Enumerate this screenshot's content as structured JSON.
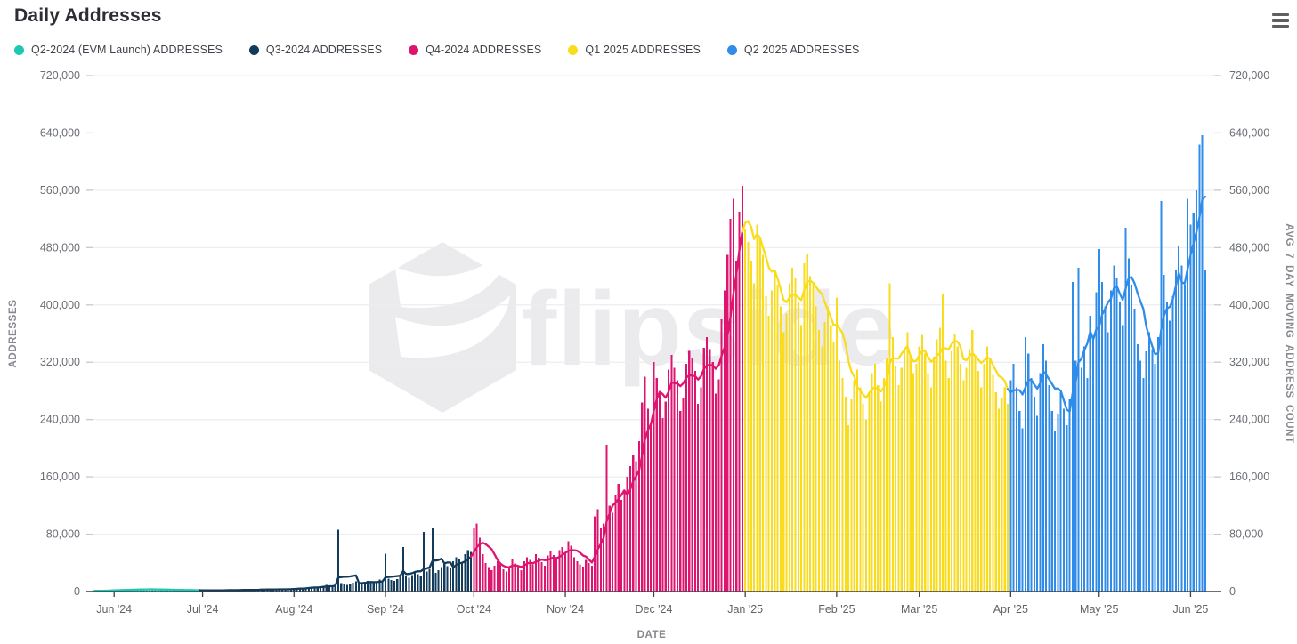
{
  "header": {
    "title": "Daily Addresses"
  },
  "legend": [
    {
      "label": "Q2-2024 (EVM Launch) ADDRESSES",
      "color": "#1BC8B1"
    },
    {
      "label": "Q3-2024 ADDRESSES",
      "color": "#123A5B"
    },
    {
      "label": "Q4-2024 ADDRESSES",
      "color": "#DD1470"
    },
    {
      "label": "Q1 2025 ADDRESSES",
      "color": "#F9DC1C"
    },
    {
      "label": "Q2 2025 ADDRESSES",
      "color": "#2F8CE8"
    }
  ],
  "watermark": {
    "text": "flipside"
  },
  "axes": {
    "left_title": "ADDRESSES",
    "right_title": "AVG_7_DAY_MOVING_ADDRESS_COUNT",
    "x_title": "DATE",
    "y_tick_labels": [
      "0",
      "80,000",
      "160,000",
      "240,000",
      "320,000",
      "400,000",
      "480,000",
      "560,000",
      "640,000",
      "720,000"
    ],
    "x_tick_labels": [
      "Jun '24",
      "Jul '24",
      "Aug '24",
      "Sep '24",
      "Oct '24",
      "Nov '24",
      "Dec '24",
      "Jan '25",
      "Feb '25",
      "Mar '25",
      "Apr '25",
      "May '25",
      "Jun '25"
    ]
  },
  "chart_data": {
    "type": "bar",
    "overlay_line": "7-day trailing moving average of the daily bars, drawn in the color of each quarter",
    "title": "Daily Addresses",
    "xlabel": "DATE",
    "ylabel_left": "ADDRESSES",
    "ylabel_right": "AVG_7_DAY_MOVING_ADDRESS_COUNT",
    "ylim": [
      0,
      720000
    ],
    "y_tick_step": 80000,
    "grid": "horizontal",
    "legend_position": "top-left",
    "start_date": "2024-05-25",
    "end_date": "2025-06-06",
    "month_tick_day_offsets": [
      7,
      37,
      68,
      99,
      129,
      160,
      190,
      221,
      252,
      280,
      311,
      341,
      372
    ],
    "series": [
      {
        "name": "Q2-2024 (EVM Launch) ADDRESSES",
        "color": "#1BC8B1",
        "start_day_offset": 0,
        "values": [
          800,
          1100,
          1400,
          1200,
          1500,
          1800,
          2200,
          2600,
          2400,
          2100,
          1900,
          2300,
          2800,
          3200,
          3600,
          3400,
          3000,
          2700,
          2500,
          2900,
          3300,
          3100,
          2800,
          2400,
          2200,
          2000,
          2300,
          2600,
          2400,
          2100,
          1900,
          1700,
          1800,
          2000,
          1900,
          1700,
          1600
        ]
      },
      {
        "name": "Q3-2024 ADDRESSES",
        "color": "#123A5B",
        "start_day_offset": 37,
        "values": [
          1600,
          1400,
          1800,
          2100,
          1900,
          1700,
          1500,
          1800,
          2200,
          2500,
          2300,
          2000,
          1800,
          2100,
          2400,
          2700,
          2500,
          2200,
          2600,
          3000,
          3400,
          3100,
          2800,
          2500,
          2900,
          3300,
          3700,
          3400,
          3000,
          3500,
          4000,
          4500,
          5200,
          4800,
          4200,
          5500,
          6300,
          7100,
          6500,
          5800,
          6800,
          8000,
          9200,
          8400,
          7600,
          10500,
          86000,
          12000,
          10800,
          9600,
          11400,
          12600,
          14500,
          12800,
          11200,
          13000,
          15200,
          13600,
          12100,
          14000,
          16500,
          15000,
          53000,
          18000,
          16200,
          14800,
          17500,
          20400,
          62000,
          22000,
          19500,
          23000,
          26500,
          24000,
          21500,
          83000,
          28000,
          31500,
          88000,
          26000,
          29500,
          34000,
          38500,
          35500,
          32000,
          42000,
          48000,
          44500,
          40000,
          52000,
          58000,
          55000
        ]
      },
      {
        "name": "Q4-2024 ADDRESSES",
        "color": "#DD1470",
        "start_day_offset": 129,
        "values": [
          88000,
          95000,
          75000,
          52000,
          40000,
          34000,
          30000,
          36000,
          42000,
          38000,
          31000,
          28000,
          33000,
          45000,
          39000,
          35000,
          30000,
          42000,
          48000,
          44000,
          38000,
          52000,
          47000,
          41000,
          36000,
          50000,
          56000,
          51000,
          45000,
          58000,
          62000,
          55000,
          70000,
          64000,
          48000,
          42000,
          38000,
          35000,
          44000,
          40000,
          36000,
          105000,
          115000,
          88000,
          95000,
          205000,
          120000,
          110000,
          135000,
          150000,
          128000,
          140000,
          160000,
          175000,
          190000,
          182000,
          210000,
          264000,
          300000,
          255000,
          235000,
          320000,
          298000,
          278000,
          242000,
          265000,
          310000,
          330000,
          312000,
          295000,
          252000,
          270000,
          318000,
          336000,
          325000,
          308000,
          262000,
          285000,
          340000,
          355000,
          338000,
          320000,
          276000,
          296000,
          380000,
          420000,
          470000,
          520000,
          548000,
          462000,
          530000,
          566000
        ]
      },
      {
        "name": "Q1 2025 ADDRESSES",
        "color": "#F9DC1C",
        "start_day_offset": 221,
        "values": [
          505000,
          488000,
          462000,
          430000,
          512000,
          495000,
          470000,
          412000,
          385000,
          420000,
          445000,
          428000,
          398000,
          362000,
          388000,
          430000,
          452000,
          438000,
          405000,
          372000,
          458000,
          472000,
          440000,
          432000,
          398000,
          365000,
          342000,
          376000,
          398000,
          372000,
          348000,
          410000,
          322000,
          298000,
          272000,
          232000,
          268000,
          295000,
          310000,
          285000,
          262000,
          240000,
          278000,
          305000,
          318000,
          288000,
          265000,
          298000,
          325000,
          430000,
          355000,
          315000,
          288000,
          312000,
          338000,
          362000,
          330000,
          305000,
          318000,
          342000,
          358000,
          332000,
          305000,
          285000,
          328000,
          352000,
          368000,
          415000,
          322000,
          298000,
          335000,
          360000,
          342000,
          318000,
          295000,
          312000,
          338000,
          365000,
          330000,
          308000,
          285000,
          318000,
          342000,
          325000,
          302000,
          278000,
          255000,
          270000,
          285000,
          262000
        ]
      },
      {
        "name": "Q2 2025 ADDRESSES",
        "color": "#2F8CE8",
        "start_day_offset": 311,
        "values": [
          295000,
          318000,
          285000,
          252000,
          228000,
          355000,
          332000,
          298000,
          272000,
          245000,
          305000,
          345000,
          322000,
          288000,
          252000,
          225000,
          248000,
          278000,
          255000,
          232000,
          268000,
          432000,
          322000,
          452000,
          312000,
          342000,
          298000,
          385000,
          352000,
          418000,
          478000,
          432000,
          398000,
          362000,
          420000,
          455000,
          438000,
          405000,
          372000,
          508000,
          465000,
          428000,
          395000,
          345000,
          322000,
          298000,
          335000,
          362000,
          338000,
          318000,
          355000,
          545000,
          442000,
          405000,
          378000,
          412000,
          448000,
          482000,
          455000,
          428000,
          548000,
          512000,
          528000,
          560000,
          624000,
          637000,
          448000
        ]
      }
    ]
  }
}
